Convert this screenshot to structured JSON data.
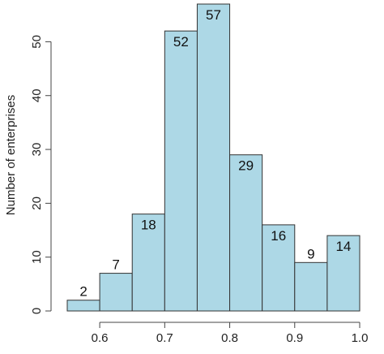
{
  "chart_data": {
    "type": "bar",
    "title": "",
    "xlabel": "",
    "ylabel": "Number of enterprises",
    "bins": [
      {
        "start": 0.55,
        "end": 0.6,
        "count": 2
      },
      {
        "start": 0.6,
        "end": 0.65,
        "count": 7
      },
      {
        "start": 0.65,
        "end": 0.7,
        "count": 18
      },
      {
        "start": 0.7,
        "end": 0.75,
        "count": 52
      },
      {
        "start": 0.75,
        "end": 0.8,
        "count": 57
      },
      {
        "start": 0.8,
        "end": 0.85,
        "count": 29
      },
      {
        "start": 0.85,
        "end": 0.9,
        "count": 16
      },
      {
        "start": 0.9,
        "end": 0.95,
        "count": 9
      },
      {
        "start": 0.95,
        "end": 1.0,
        "count": 14
      }
    ],
    "data_labels": [
      "2",
      "7",
      "18",
      "52",
      "57",
      "29",
      "16",
      "9",
      "14"
    ],
    "xlim": [
      0.55,
      1.0
    ],
    "ylim": [
      0,
      57
    ],
    "x_ticks": [
      0.6,
      0.7,
      0.8,
      0.9,
      1.0
    ],
    "x_tick_labels": [
      "0.6",
      "0.7",
      "0.8",
      "0.9",
      "1.0"
    ],
    "y_ticks": [
      0,
      10,
      20,
      30,
      40,
      50
    ],
    "y_tick_labels": [
      "0",
      "10",
      "20",
      "30",
      "40",
      "50"
    ],
    "grid": false,
    "bar_color": "#add8e6",
    "edge_color": "#333333"
  }
}
